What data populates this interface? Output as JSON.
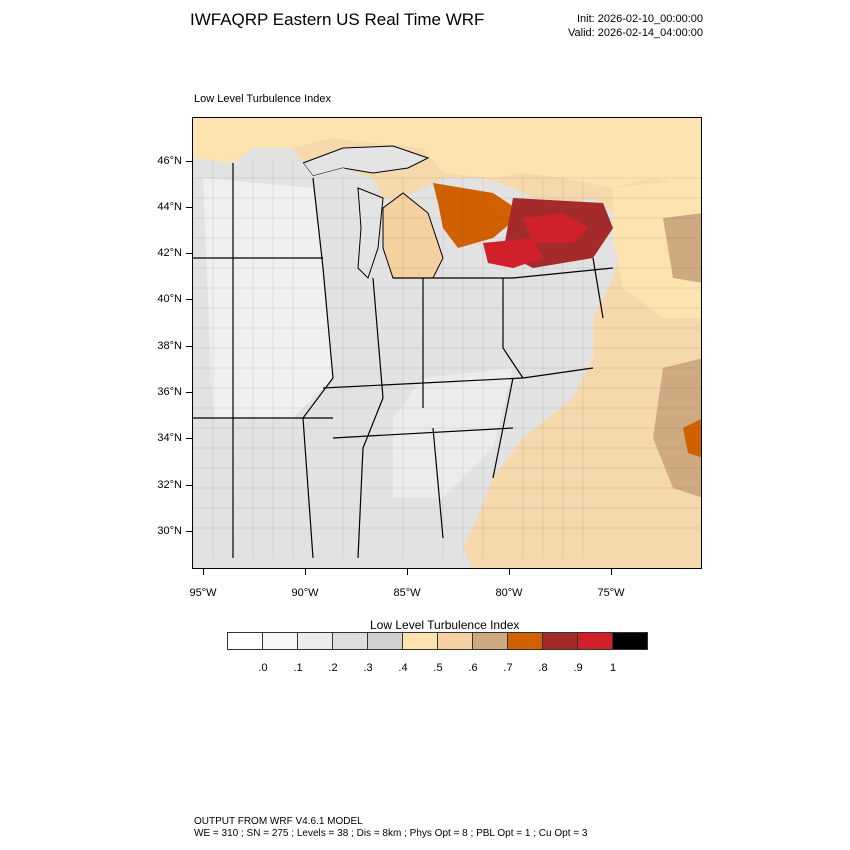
{
  "header": {
    "title": "IWFAQRP Eastern US Real Time WRF",
    "init": "Init: 2026-02-10_00:00:00",
    "valid": "Valid: 2026-02-14_04:00:00"
  },
  "map": {
    "subtitle": "Low Level Turbulence Index",
    "lat_labels": [
      "46°N",
      "44°N",
      "42°N",
      "40°N",
      "38°N",
      "36°N",
      "34°N",
      "32°N",
      "30°N"
    ],
    "lon_labels": [
      "95°W",
      "90°W",
      "85°W",
      "80°W",
      "75°W"
    ],
    "field": "Low Level Turbulence Index"
  },
  "colorbar": {
    "title": "Low Level Turbulence Index",
    "colors": [
      "#ffffff",
      "#f6f6f6",
      "#ececec",
      "#dedede",
      "#d0d0d0",
      "#fde3b0",
      "#f5d0a0",
      "#cfaa80",
      "#d06000",
      "#a52a2a",
      "#d2202a",
      "#000000"
    ],
    "labels": [
      ".0",
      ".1",
      ".2",
      ".3",
      ".4",
      ".5",
      ".6",
      ".7",
      ".8",
      ".9",
      "1"
    ]
  },
  "footer": {
    "line1": "OUTPUT FROM WRF V4.6.1 MODEL",
    "line2": "WE = 310 ; SN = 275 ; Levels = 38 ; Dis = 8km ; Phys Opt = 8 ; PBL Opt = 1 ; Cu Opt = 3"
  }
}
